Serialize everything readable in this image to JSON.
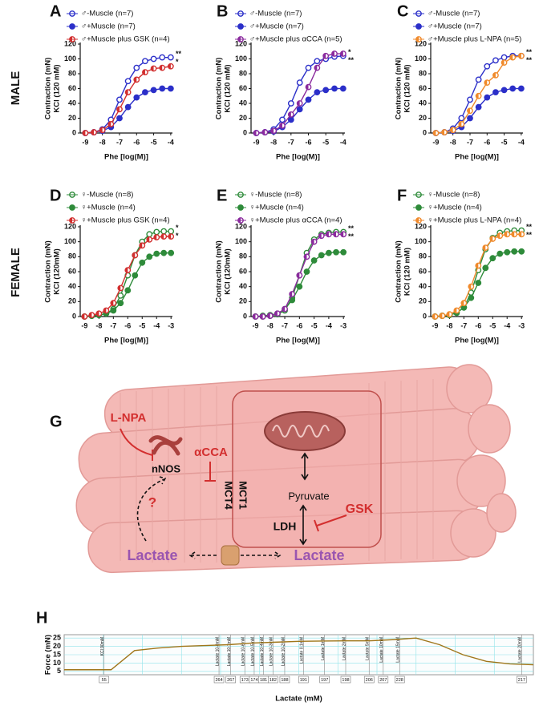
{
  "row_labels": [
    "MALE",
    "FEMALE"
  ],
  "chart_data": [
    {
      "type": "line",
      "panel": "A",
      "ylabel": [
        "Contraction (mN)",
        "KCl (120 mM)"
      ],
      "xlabel": "Phe [log(M)]",
      "x": [
        -9,
        -8.5,
        -8,
        -7.5,
        -7,
        -6.5,
        -6,
        -5.5,
        -5,
        -4.5,
        -4
      ],
      "series": [
        {
          "name": "♂-Muscle (n=7)",
          "color": "#2b2fc9",
          "marker": "open",
          "values": [
            0,
            1,
            5,
            18,
            45,
            70,
            88,
            97,
            100,
            102,
            102
          ]
        },
        {
          "name": "♂+Muscle (n=7)",
          "color": "#2b2fc9",
          "marker": "filled",
          "values": [
            0,
            1,
            3,
            8,
            20,
            35,
            48,
            55,
            58,
            60,
            60
          ]
        },
        {
          "name": "♂+Muscle plus GSK (n=4)",
          "color": "#d22f2f",
          "marker": "half",
          "values": [
            0,
            1,
            4,
            12,
            32,
            55,
            72,
            82,
            87,
            88,
            90
          ]
        }
      ],
      "annotations": [
        "**",
        "*"
      ],
      "xlim": [
        -9.3,
        -3.9
      ],
      "xticks": [
        -9,
        -8,
        -7,
        -6,
        -5,
        -4
      ],
      "ylim": [
        0,
        120
      ],
      "yticks": [
        0,
        20,
        40,
        60,
        80,
        100,
        120
      ]
    },
    {
      "type": "line",
      "panel": "B",
      "ylabel": [
        "Contraction (mN)",
        "KCl (120 mM)"
      ],
      "xlabel": "Phe [log(M)]",
      "x": [
        -9,
        -8.5,
        -8,
        -7.5,
        -7,
        -6.5,
        -6,
        -5.5,
        -5,
        -4.5,
        -4
      ],
      "series": [
        {
          "name": "♂-Muscle (n=7)",
          "color": "#2b2fc9",
          "marker": "open",
          "values": [
            0,
            1,
            5,
            18,
            40,
            68,
            88,
            97,
            100,
            103,
            104
          ]
        },
        {
          "name": "♂+Muscle (n=7)",
          "color": "#2b2fc9",
          "marker": "filled",
          "values": [
            0,
            1,
            2,
            8,
            18,
            32,
            45,
            55,
            58,
            60,
            60
          ]
        },
        {
          "name": "♂+Muscle plus αCCA (n=5)",
          "color": "#8b2b9e",
          "marker": "half",
          "values": [
            0,
            1,
            3,
            10,
            25,
            40,
            62,
            88,
            104,
            107,
            107
          ]
        }
      ],
      "annotations": [
        "*",
        "**"
      ],
      "xlim": [
        -9.3,
        -3.9
      ],
      "xticks": [
        -9,
        -8,
        -7,
        -6,
        -5,
        -4
      ],
      "ylim": [
        0,
        120
      ],
      "yticks": [
        0,
        20,
        40,
        60,
        80,
        100,
        120
      ]
    },
    {
      "type": "line",
      "panel": "C",
      "ylabel": [
        "Contraction (mN)",
        "KCl (120 mM)"
      ],
      "xlabel": "Phe [log(M)]",
      "x": [
        -9,
        -8.5,
        -8,
        -7.5,
        -7,
        -6.5,
        -6,
        -5.5,
        -5,
        -4.5,
        -4
      ],
      "series": [
        {
          "name": "♂-Muscle (n=7)",
          "color": "#2b2fc9",
          "marker": "open",
          "values": [
            0,
            1,
            6,
            20,
            45,
            72,
            90,
            98,
            102,
            104,
            104
          ]
        },
        {
          "name": "♂+Muscle (n=7)",
          "color": "#2b2fc9",
          "marker": "filled",
          "values": [
            0,
            1,
            3,
            8,
            20,
            35,
            48,
            55,
            58,
            60,
            60
          ]
        },
        {
          "name": "♂+Muscle plus L-NPA (n=5)",
          "color": "#f08a2c",
          "marker": "half",
          "values": [
            0,
            1,
            4,
            12,
            30,
            50,
            68,
            78,
            95,
            102,
            104
          ]
        }
      ],
      "annotations": [
        "**",
        "**"
      ],
      "xlim": [
        -9.3,
        -3.9
      ],
      "xticks": [
        -9,
        -8,
        -7,
        -6,
        -5,
        -4
      ],
      "ylim": [
        0,
        120
      ],
      "yticks": [
        0,
        20,
        40,
        60,
        80,
        100,
        120
      ]
    },
    {
      "type": "line",
      "panel": "D",
      "ylabel": [
        "Contraction (mN)",
        "KCl (120mM)"
      ],
      "xlabel": "Phe [log(M)]",
      "x": [
        -9,
        -8.5,
        -8,
        -7.5,
        -7,
        -6.5,
        -6,
        -5.5,
        -5,
        -4.5,
        -4,
        -3.5,
        -3
      ],
      "series": [
        {
          "name": "♀-Muscle (n=8)",
          "color": "#2e8b3a",
          "marker": "open",
          "values": [
            0,
            1,
            2,
            4,
            10,
            28,
            55,
            82,
            100,
            110,
            113,
            114,
            114
          ]
        },
        {
          "name": "♀+Muscle (n=4)",
          "color": "#2e8b3a",
          "marker": "filled",
          "values": [
            0,
            1,
            2,
            4,
            8,
            18,
            35,
            55,
            72,
            80,
            84,
            85,
            85
          ]
        },
        {
          "name": "♀+Muscle plus GSK (n=4)",
          "color": "#d22f2f",
          "marker": "half",
          "values": [
            0,
            2,
            4,
            8,
            18,
            38,
            62,
            82,
            95,
            103,
            106,
            107,
            107
          ]
        }
      ],
      "annotations": [
        "*",
        "*"
      ],
      "xlim": [
        -9.3,
        -2.9
      ],
      "xticks": [
        -9,
        -8,
        -7,
        -6,
        -5,
        -4,
        -3
      ],
      "ylim": [
        0,
        120
      ],
      "yticks": [
        0,
        20,
        40,
        60,
        80,
        100,
        120
      ]
    },
    {
      "type": "line",
      "panel": "E",
      "ylabel": [
        "Contraction (mN)",
        "KCl (120mM)"
      ],
      "xlabel": "Phe [log(M)]",
      "x": [
        -9,
        -8.5,
        -8,
        -7.5,
        -7,
        -6.5,
        -6,
        -5.5,
        -5,
        -4.5,
        -4,
        -3.5,
        -3
      ],
      "series": [
        {
          "name": "♀-Muscle (n=8)",
          "color": "#2e8b3a",
          "marker": "open",
          "values": [
            0,
            0,
            1,
            3,
            8,
            25,
            55,
            85,
            103,
            110,
            112,
            113,
            113
          ]
        },
        {
          "name": "♀+Muscle (n=4)",
          "color": "#2e8b3a",
          "marker": "filled",
          "values": [
            0,
            1,
            2,
            4,
            10,
            22,
            40,
            60,
            75,
            82,
            85,
            86,
            86
          ]
        },
        {
          "name": "♀+Muscle plus αCCA (n=4)",
          "color": "#8b2b9e",
          "marker": "half",
          "values": [
            0,
            0,
            1,
            4,
            10,
            30,
            55,
            80,
            100,
            108,
            110,
            110,
            110
          ]
        }
      ],
      "annotations": [
        "**",
        "**"
      ],
      "xlim": [
        -9.3,
        -2.9
      ],
      "xticks": [
        -9,
        -8,
        -7,
        -6,
        -5,
        -4,
        -3
      ],
      "ylim": [
        0,
        120
      ],
      "yticks": [
        0,
        20,
        40,
        60,
        80,
        100,
        120
      ]
    },
    {
      "type": "line",
      "panel": "F",
      "ylabel": [
        "Contraction (mN)",
        "KCl (120 mM)"
      ],
      "xlabel": "Phe [log(M)]",
      "x": [
        -9,
        -8.5,
        -8,
        -7.5,
        -7,
        -6.5,
        -6,
        -5.5,
        -5,
        -4.5,
        -4,
        -3.5,
        -3
      ],
      "series": [
        {
          "name": "♀-Muscle (n=8)",
          "color": "#2e8b3a",
          "marker": "open",
          "values": [
            0,
            1,
            2,
            5,
            12,
            32,
            62,
            90,
            105,
            112,
            114,
            115,
            115
          ]
        },
        {
          "name": "♀+Muscle (n=4)",
          "color": "#2e8b3a",
          "marker": "filled",
          "values": [
            0,
            1,
            2,
            5,
            12,
            25,
            45,
            65,
            78,
            84,
            86,
            87,
            87
          ]
        },
        {
          "name": "♀+Muscle plus L-NPA (n=4)",
          "color": "#f08a2c",
          "marker": "half",
          "values": [
            0,
            1,
            3,
            8,
            18,
            40,
            68,
            92,
            104,
            108,
            110,
            110,
            110
          ]
        }
      ],
      "annotations": [
        "**",
        "**"
      ],
      "xlim": [
        -9.3,
        -2.9
      ],
      "xticks": [
        -9,
        -8,
        -7,
        -6,
        -5,
        -4,
        -3
      ],
      "ylim": [
        0,
        120
      ],
      "yticks": [
        0,
        20,
        40,
        60,
        80,
        100,
        120
      ]
    },
    {
      "type": "line",
      "panel": "H",
      "ylabel": "Force (mN)",
      "xlabel": "Lactate (mM)",
      "color": "#a0761a",
      "values": [
        6,
        6,
        6,
        17.5,
        19,
        20,
        20.5,
        21,
        22,
        22.5,
        23,
        23.2,
        23.3,
        23.3,
        24,
        25,
        21,
        15,
        11,
        9.5,
        9
      ],
      "ylim": [
        3,
        27
      ],
      "yticks": [
        5,
        10,
        15,
        20,
        25
      ],
      "grid": true,
      "events": [
        {
          "label": "KCl 90mM",
          "id": 55
        },
        {
          "label": "Lactate 10-8mM",
          "id": 264
        },
        {
          "label": "Lactate 10-7mM",
          "id": 267
        },
        {
          "label": "Lactate 10-6mM",
          "id": 173
        },
        {
          "label": "Lactate 10-5mM",
          "id": 174
        },
        {
          "label": "Lactate 10-4mM",
          "id": 181
        },
        {
          "label": "Lactate 10-3mM",
          "id": 182
        },
        {
          "label": "Lactate 10-2mM",
          "id": 188
        },
        {
          "label": "Lactate 0.1mM",
          "id": 191
        },
        {
          "label": "Lactate 1mM",
          "id": 197
        },
        {
          "label": "Lactate 2mM",
          "id": 198
        },
        {
          "label": "Lactate 5mM",
          "id": 206
        },
        {
          "label": "Lactate 10mM",
          "id": 207
        },
        {
          "label": "Lactate 15mM",
          "id": 228
        },
        {
          "label": "Lactate 20mM",
          "id": 217
        }
      ]
    }
  ],
  "diagram": {
    "label": "G",
    "inhibitors": [
      "L-NPA",
      "αCCA",
      "GSK"
    ],
    "nodes": [
      "nNOS",
      "Pyruvate",
      "LDH"
    ],
    "transporters": [
      "MCT1",
      "MCT4"
    ],
    "unknown": "?",
    "lactate": [
      "Lactate",
      "Lactate"
    ]
  }
}
